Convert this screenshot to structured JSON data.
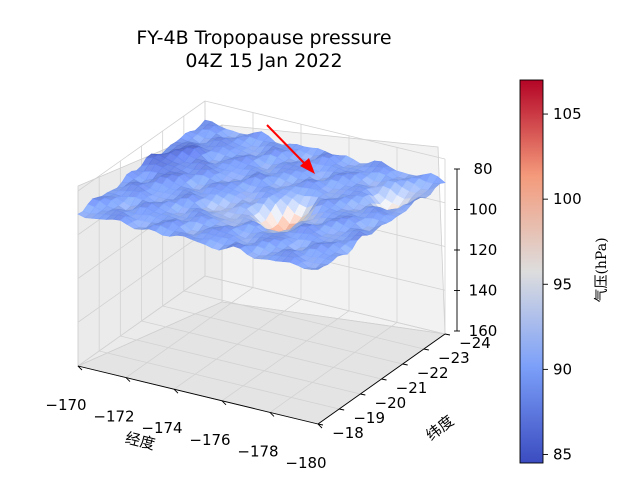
{
  "chart_data": {
    "type": "surface3d",
    "title_lines": [
      "FY-4B Tropopause pressure",
      "04Z 15 Jan 2022"
    ],
    "xlabel": "经度",
    "ylabel": "纬度",
    "zlabel": "",
    "x_ticks": [
      "−170",
      "−172",
      "−174",
      "−176",
      "−178",
      "−180"
    ],
    "y_ticks": [
      "−18",
      "−19",
      "−20",
      "−21",
      "−22",
      "−23",
      "−24"
    ],
    "z_ticks": [
      "80",
      "100",
      "120",
      "140",
      "160"
    ],
    "xlim": [
      -170,
      -180
    ],
    "ylim": [
      -18,
      -24
    ],
    "zlim": [
      80,
      160
    ],
    "z_inverted": true,
    "colormap": "coolwarm",
    "colorbar": {
      "label": "气压(hPa)",
      "range": [
        84.5,
        107
      ],
      "ticks": [
        "85",
        "90",
        "95",
        "100",
        "105"
      ]
    },
    "annotation": "red-arrow pointing to pressure peak",
    "arrow_color": "#ff0000",
    "surface_summary": {
      "typical_value": 90,
      "peak_value": 102,
      "peak_location": {
        "lon": -176.3,
        "lat": -20.6
      }
    }
  }
}
